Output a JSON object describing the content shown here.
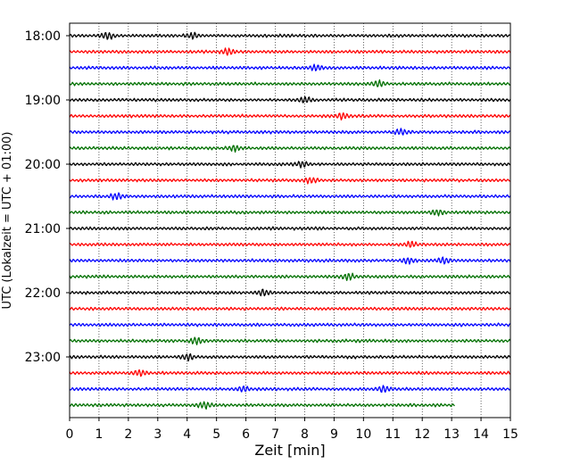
{
  "chart_data": {
    "type": "line",
    "chart_kind": "helicorder",
    "xlabel": "Zeit  [min]",
    "ylabel": "UTC (Lokalzeit = UTC + 01:00)",
    "xlim": [
      0,
      15
    ],
    "x_ticks": [
      0,
      1,
      2,
      3,
      4,
      5,
      6,
      7,
      8,
      9,
      10,
      11,
      12,
      13,
      14,
      15
    ],
    "x_tick_labels": [
      "0",
      "1",
      "2",
      "3",
      "4",
      "5",
      "6",
      "7",
      "8",
      "9",
      "10",
      "11",
      "12",
      "13",
      "14",
      "15"
    ],
    "y_tick_labels": [
      "18:00",
      "19:00",
      "20:00",
      "21:00",
      "22:00",
      "23:00"
    ],
    "grid": "vertical dotted",
    "line_colors": [
      "#000000",
      "#ff0000",
      "#0000ff",
      "#007000"
    ],
    "trace_count": 24,
    "last_trace_end_min": 13.1,
    "events": [
      {
        "row": 0,
        "minute": 1.3
      },
      {
        "row": 0,
        "minute": 4.2
      },
      {
        "row": 1,
        "minute": 5.4
      },
      {
        "row": 2,
        "minute": 8.4
      },
      {
        "row": 3,
        "minute": 10.5
      },
      {
        "row": 4,
        "minute": 8.0
      },
      {
        "row": 5,
        "minute": 9.3
      },
      {
        "row": 6,
        "minute": 11.3
      },
      {
        "row": 7,
        "minute": 5.6
      },
      {
        "row": 8,
        "minute": 7.9
      },
      {
        "row": 9,
        "minute": 8.2
      },
      {
        "row": 10,
        "minute": 1.6
      },
      {
        "row": 11,
        "minute": 12.5
      },
      {
        "row": 13,
        "minute": 11.6
      },
      {
        "row": 14,
        "minute": 11.5
      },
      {
        "row": 14,
        "minute": 12.7
      },
      {
        "row": 15,
        "minute": 9.5
      },
      {
        "row": 16,
        "minute": 6.6
      },
      {
        "row": 19,
        "minute": 4.3
      },
      {
        "row": 20,
        "minute": 4.0
      },
      {
        "row": 21,
        "minute": 2.4
      },
      {
        "row": 22,
        "minute": 5.9
      },
      {
        "row": 22,
        "minute": 10.7
      },
      {
        "row": 23,
        "minute": 4.6
      }
    ]
  }
}
